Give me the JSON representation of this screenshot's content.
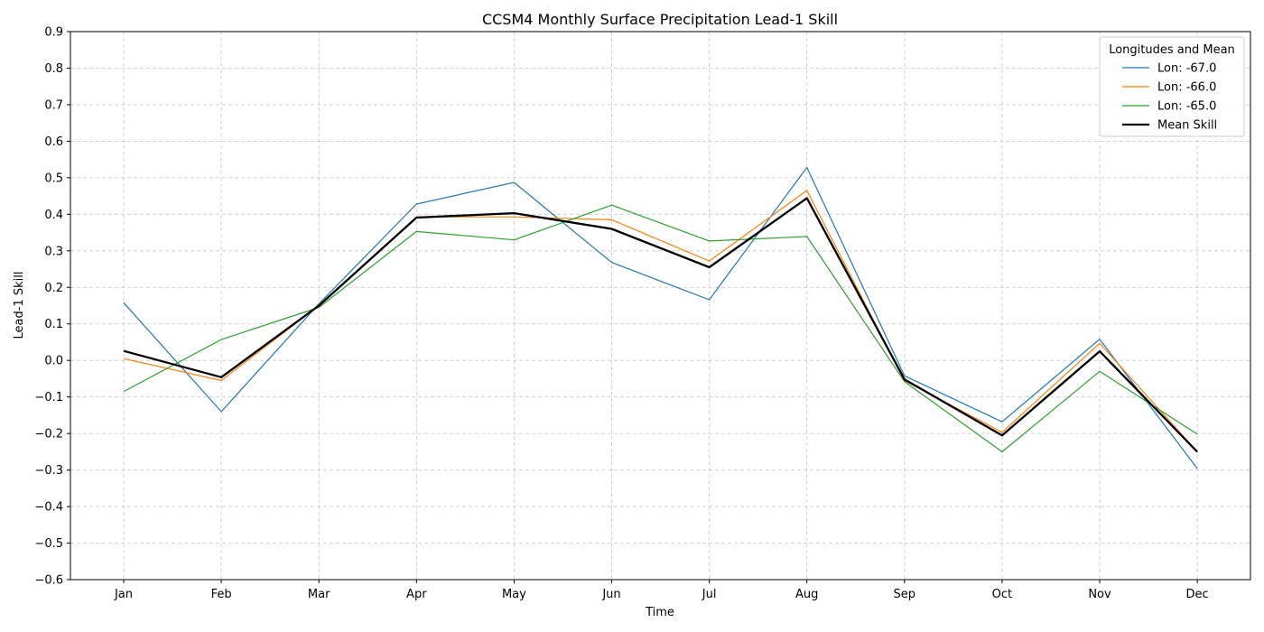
{
  "chart_data": {
    "type": "line",
    "title": "CCSM4 Monthly Surface Precipitation Lead-1 Skill",
    "xlabel": "Time",
    "ylabel": "Lead-1 Skill",
    "categories": [
      "Jan",
      "Feb",
      "Mar",
      "Apr",
      "May",
      "Jun",
      "Jul",
      "Aug",
      "Sep",
      "Oct",
      "Nov",
      "Dec"
    ],
    "ylim": [
      -0.6,
      0.9
    ],
    "yticks": [
      "-0.6",
      "-0.5",
      "-0.4",
      "-0.3",
      "-0.2",
      "-0.1",
      "0.0",
      "0.1",
      "0.2",
      "0.3",
      "0.4",
      "0.5",
      "0.6",
      "0.7",
      "0.8",
      "0.9"
    ],
    "grid": true,
    "legend": {
      "title": "Longitudes and Mean",
      "placement": "top-right"
    },
    "series": [
      {
        "name": "Lon: -67.0",
        "color": "#1f77b4",
        "values": [
          0.158,
          -0.14,
          0.155,
          0.428,
          0.487,
          0.268,
          0.166,
          0.528,
          -0.042,
          -0.168,
          0.058,
          -0.296
        ]
      },
      {
        "name": "Lon: -66.0",
        "color": "#ff7f0e",
        "values": [
          0.005,
          -0.055,
          0.15,
          0.393,
          0.393,
          0.385,
          0.272,
          0.465,
          -0.055,
          -0.197,
          0.047,
          -0.25
        ]
      },
      {
        "name": "Lon: -65.0",
        "color": "#2ca02c",
        "values": [
          -0.085,
          0.057,
          0.145,
          0.353,
          0.33,
          0.425,
          0.327,
          0.339,
          -0.058,
          -0.25,
          -0.03,
          -0.202
        ]
      },
      {
        "name": "Mean Skill",
        "color": "#000000",
        "values": [
          0.026,
          -0.046,
          0.15,
          0.391,
          0.403,
          0.36,
          0.255,
          0.444,
          -0.052,
          -0.205,
          0.025,
          -0.25
        ]
      }
    ]
  }
}
